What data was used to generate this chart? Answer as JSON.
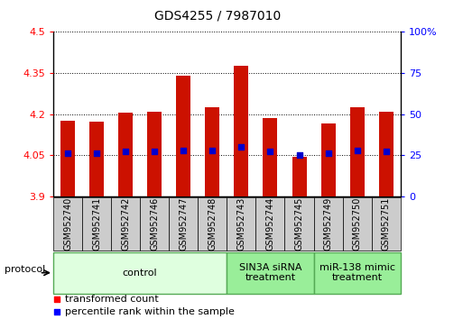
{
  "title": "GDS4255 / 7987010",
  "samples": [
    "GSM952740",
    "GSM952741",
    "GSM952742",
    "GSM952746",
    "GSM952747",
    "GSM952748",
    "GSM952743",
    "GSM952744",
    "GSM952745",
    "GSM952749",
    "GSM952750",
    "GSM952751"
  ],
  "bar_tops": [
    4.175,
    4.172,
    4.205,
    4.21,
    4.34,
    4.225,
    4.375,
    4.185,
    4.045,
    4.165,
    4.225,
    4.21
  ],
  "bar_bottom": 3.9,
  "percentile_values": [
    26,
    26,
    27,
    27,
    28,
    28,
    30,
    27,
    25,
    26,
    28,
    27
  ],
  "ylim_left": [
    3.9,
    4.5
  ],
  "ylim_right": [
    0,
    100
  ],
  "yticks_left": [
    3.9,
    4.05,
    4.2,
    4.35,
    4.5
  ],
  "yticks_right": [
    0,
    25,
    50,
    75,
    100
  ],
  "ytick_labels_left": [
    "3.9",
    "4.05",
    "4.2",
    "4.35",
    "4.5"
  ],
  "ytick_labels_right": [
    "0",
    "25",
    "50",
    "75",
    "100%"
  ],
  "bar_color": "#cc1100",
  "percentile_color": "#0000cc",
  "groups": [
    {
      "label": "control",
      "start": 0,
      "end": 6,
      "color": "#dfffdf",
      "edge_color": "#55aa55"
    },
    {
      "label": "SIN3A siRNA\ntreatment",
      "start": 6,
      "end": 9,
      "color": "#99ee99",
      "edge_color": "#55aa55"
    },
    {
      "label": "miR-138 mimic\ntreatment",
      "start": 9,
      "end": 12,
      "color": "#99ee99",
      "edge_color": "#55aa55"
    }
  ],
  "protocol_label": "protocol",
  "title_fontsize": 10,
  "tick_fontsize": 8,
  "sample_fontsize": 7,
  "group_fontsize": 8,
  "legend_fontsize": 8
}
